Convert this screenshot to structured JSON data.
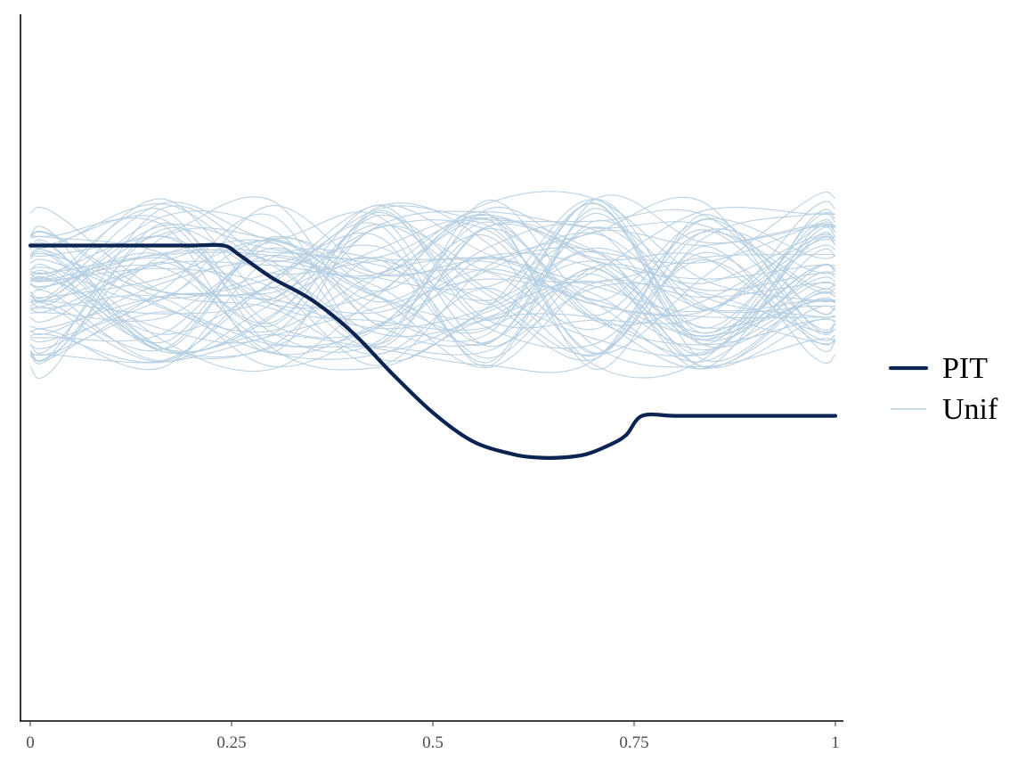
{
  "chart_data": {
    "type": "line",
    "title": "",
    "xlabel": "",
    "ylabel": "",
    "xlim": [
      0,
      1
    ],
    "ylim": [
      0,
      2.2
    ],
    "x_ticks": [
      {
        "value": 0,
        "label": "0"
      },
      {
        "value": 0.25,
        "label": "0.25"
      },
      {
        "value": 0.5,
        "label": "0.5"
      },
      {
        "value": 0.75,
        "label": "0.75"
      },
      {
        "value": 1,
        "label": "1"
      }
    ],
    "y_axis_ticks_shown": false,
    "grid": false,
    "legend": {
      "position": "right",
      "entries": [
        {
          "label": "PIT",
          "color": "#0b2452",
          "style": "thick"
        },
        {
          "label": "Unif",
          "color": "#b6cfe2",
          "style": "thin"
        }
      ]
    },
    "series": [
      {
        "name": "PIT",
        "color": "#0b2452",
        "x": [
          0,
          0.05,
          0.1,
          0.15,
          0.2,
          0.24,
          0.26,
          0.3,
          0.35,
          0.4,
          0.45,
          0.5,
          0.55,
          0.6,
          0.63,
          0.66,
          0.69,
          0.72,
          0.74,
          0.76,
          0.8,
          0.85,
          0.9,
          0.95,
          1.0
        ],
        "y": [
          1.48,
          1.48,
          1.48,
          1.48,
          1.48,
          1.48,
          1.45,
          1.38,
          1.31,
          1.21,
          1.08,
          0.96,
          0.87,
          0.83,
          0.82,
          0.82,
          0.83,
          0.86,
          0.89,
          0.95,
          0.95,
          0.95,
          0.95,
          0.95,
          0.95
        ]
      }
    ],
    "reference_draws": {
      "name": "Unif",
      "count": 60,
      "color": "#b6cfe2",
      "y_center": 1.36,
      "y_spread": 0.28
    }
  }
}
